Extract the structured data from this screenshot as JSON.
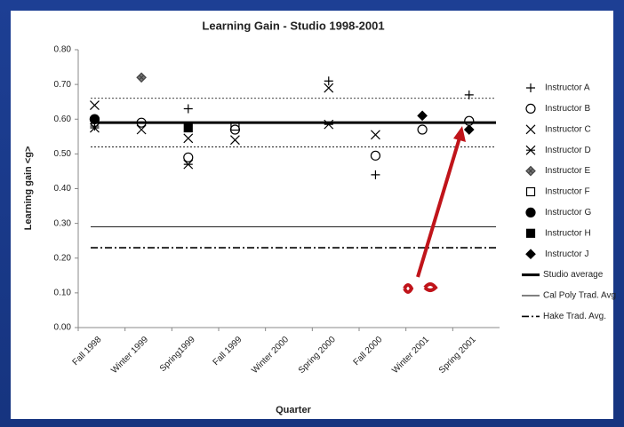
{
  "chart_data": {
    "type": "scatter",
    "title": "Learning Gain - Studio 1998-2001",
    "x_label": "Quarter",
    "y_label": "Learning gain <g>",
    "categories": [
      "Fall 1998",
      "Winter 1999",
      "Spring1999",
      "Fall 1999",
      "Winter 2000",
      "Spring 2000",
      "Fall 2000",
      "Winter 2001",
      "Spring 2001"
    ],
    "ylim": [
      0,
      0.8
    ],
    "yticks": [
      {
        "value": 0,
        "label": "0.00"
      },
      {
        "value": 0.1,
        "label": "0.10"
      },
      {
        "value": 0.2,
        "label": "0.20"
      },
      {
        "value": 0.3,
        "label": "0.30"
      },
      {
        "value": 0.4,
        "label": "0.40"
      },
      {
        "value": 0.5,
        "label": "0.50"
      },
      {
        "value": 0.6,
        "label": "0.60"
      },
      {
        "value": 0.7,
        "label": "0.70"
      },
      {
        "value": 0.8,
        "label": "0.80"
      }
    ],
    "series": [
      {
        "name": "Instructor A",
        "marker": "plus",
        "color": "#000000",
        "values": [
          0.58,
          null,
          0.63,
          null,
          null,
          0.71,
          0.44,
          null,
          0.67
        ]
      },
      {
        "name": "Instructor B",
        "marker": "circle",
        "color": "#000000",
        "values": [
          0.6,
          0.59,
          0.49,
          0.57,
          null,
          null,
          0.495,
          0.57,
          0.595
        ]
      },
      {
        "name": "Instructor C",
        "marker": "x",
        "color": "#000000",
        "values": [
          0.64,
          0.57,
          0.545,
          0.54,
          null,
          0.69,
          0.555,
          null,
          null
        ]
      },
      {
        "name": "Instructor D",
        "marker": "asterisk",
        "color": "#000000",
        "values": [
          0.575,
          null,
          0.47,
          null,
          null,
          0.585,
          null,
          null,
          null
        ]
      },
      {
        "name": "Instructor E",
        "marker": "diamond",
        "color": "#777777",
        "values": [
          null,
          0.72,
          null,
          null,
          null,
          null,
          null,
          null,
          null
        ]
      },
      {
        "name": "Instructor F",
        "marker": "square",
        "color": "#000000",
        "values": [
          null,
          null,
          null,
          0.58,
          null,
          null,
          null,
          null,
          null
        ]
      },
      {
        "name": "Instructor G",
        "marker": "filled-circle",
        "color": "#000000",
        "values": [
          0.6,
          null,
          null,
          null,
          null,
          null,
          null,
          null,
          null
        ]
      },
      {
        "name": "Instructor H",
        "marker": "filled-square",
        "color": "#000000",
        "values": [
          null,
          null,
          0.575,
          null,
          null,
          null,
          null,
          null,
          null
        ]
      },
      {
        "name": "Instructor J",
        "marker": "filled-diamond",
        "color": "#000000",
        "values": [
          null,
          null,
          null,
          null,
          null,
          null,
          null,
          0.61,
          0.57
        ]
      }
    ],
    "reference_lines": [
      {
        "name": "Studio average",
        "value": 0.59,
        "style": "thick",
        "color": "#000000"
      },
      {
        "name": "Cal Poly Trad. Avg",
        "value": 0.29,
        "style": "thin",
        "color": "#000000"
      },
      {
        "name": "Hake Trad. Avg.",
        "value": 0.23,
        "style": "dashdot",
        "color": "#000000"
      }
    ],
    "band_lines": [
      0.52,
      0.66
    ]
  }
}
